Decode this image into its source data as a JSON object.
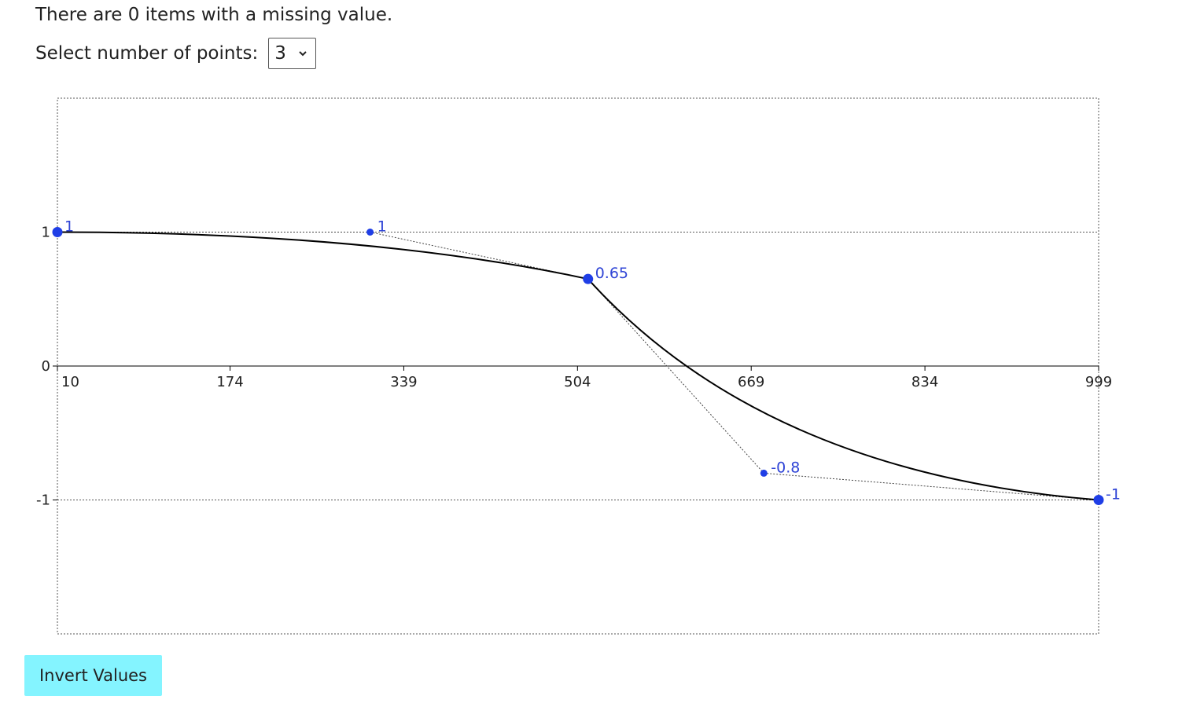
{
  "status": {
    "message": "There are 0 items with a missing value."
  },
  "points_selector": {
    "label": "Select number of points:",
    "selected": "3"
  },
  "invert_button": {
    "label": "Invert Values"
  },
  "colors": {
    "point": "#1f3ee6",
    "label": "#2f44d6",
    "curve": "#000000",
    "guide": "#444444",
    "button": "#84f4ff"
  },
  "icons": {
    "select_arrow": "chevron-down-icon"
  },
  "chart_data": {
    "type": "line",
    "xlim": [
      10,
      999
    ],
    "ylim": [
      -2,
      2
    ],
    "x_ticks": [
      "10",
      "174",
      "339",
      "504",
      "669",
      "834",
      "999"
    ],
    "y_ticks": [
      "1",
      "0",
      "-1"
    ],
    "grid": true,
    "curve": {
      "anchors": [
        {
          "x": 10,
          "y": 1,
          "label": "1"
        },
        {
          "x": 514,
          "y": 0.65,
          "label": "0.65"
        },
        {
          "x": 999,
          "y": -1,
          "label": "-1"
        }
      ],
      "controls": [
        {
          "x": 307,
          "y": 1,
          "label": "1"
        },
        {
          "x": 681,
          "y": -0.8,
          "label": "-0.8"
        }
      ]
    }
  }
}
